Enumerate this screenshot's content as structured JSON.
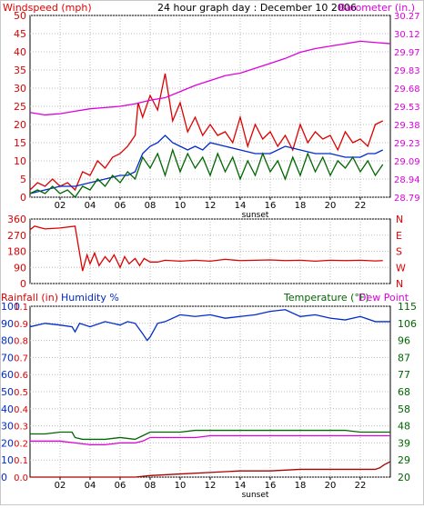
{
  "chart_data": [
    {
      "type": "line",
      "title": "24 hour graph day : December 10 2006",
      "ylabel_left": "Windspeed (mph)",
      "ylabel_right": "Barometer (in.)",
      "xlabel_marker": "sunset",
      "x_ticks": [
        "02",
        "04",
        "06",
        "08",
        "10",
        "12",
        "14",
        "16",
        "18",
        "20",
        "22"
      ],
      "x_range": [
        0,
        24
      ],
      "left_ticks": [
        "0",
        "5",
        "10",
        "15",
        "20",
        "25",
        "30",
        "35",
        "40",
        "45",
        "50"
      ],
      "left_range": [
        0,
        50
      ],
      "right_ticks": [
        "28.79",
        "28.94",
        "29.09",
        "29.23",
        "29.38",
        "29.53",
        "29.68",
        "29.83",
        "29.97",
        "30.12",
        "30.27"
      ],
      "right_range": [
        28.79,
        30.27
      ],
      "grid": true,
      "series": [
        {
          "name": "Windspeed (mph)",
          "axis": "left",
          "color": "#dd0000",
          "x": [
            0,
            0.5,
            1,
            1.5,
            2,
            2.5,
            3,
            3.5,
            4,
            4.5,
            5,
            5.5,
            6,
            6.5,
            7,
            7.2,
            7.5,
            8,
            8.5,
            9,
            9.5,
            10,
            10.5,
            11,
            11.5,
            12,
            12.5,
            13,
            13.5,
            14,
            14.5,
            15,
            15.5,
            16,
            16.5,
            17,
            17.5,
            18,
            18.5,
            19,
            19.5,
            20,
            20.5,
            21,
            21.5,
            22,
            22.5,
            23,
            23.5
          ],
          "y": [
            2,
            4,
            3,
            5,
            3,
            4,
            2,
            7,
            6,
            10,
            8,
            11,
            12,
            14,
            17,
            26,
            22,
            28,
            24,
            34,
            21,
            26,
            18,
            22,
            17,
            20,
            17,
            18,
            15,
            22,
            14,
            20,
            16,
            18,
            14,
            17,
            13,
            20,
            15,
            18,
            16,
            17,
            13,
            18,
            15,
            16,
            14,
            20,
            21
          ]
        },
        {
          "name": "",
          "axis": "left",
          "color": "#002bcc",
          "x": [
            0,
            1,
            2,
            3,
            4,
            5,
            6,
            6.5,
            7,
            7.5,
            8,
            8.5,
            9,
            9.5,
            10,
            10.5,
            11,
            11.5,
            12,
            13,
            14,
            15,
            16,
            17,
            18,
            19,
            20,
            21,
            22,
            22.5,
            23,
            23.5
          ],
          "y": [
            1,
            2,
            3,
            3,
            4,
            5,
            6,
            6,
            7,
            12,
            14,
            15,
            17,
            15,
            14,
            13,
            14,
            13,
            15,
            14,
            13,
            12,
            12,
            14,
            13,
            12,
            12,
            11,
            11,
            12,
            12,
            13
          ]
        },
        {
          "name": "",
          "axis": "left",
          "color": "#006600",
          "x": [
            0,
            0.5,
            1,
            1.5,
            2,
            2.5,
            3,
            3.5,
            4,
            4.5,
            5,
            5.5,
            6,
            6.5,
            7,
            7.5,
            8,
            8.5,
            9,
            9.5,
            10,
            10.5,
            11,
            11.5,
            12,
            12.5,
            13,
            13.5,
            14,
            14.5,
            15,
            15.5,
            16,
            16.5,
            17,
            17.5,
            18,
            18.5,
            19,
            19.5,
            20,
            20.5,
            21,
            21.5,
            22,
            22.5,
            23,
            23.5
          ],
          "y": [
            1,
            2,
            1,
            3,
            1,
            2,
            0,
            3,
            2,
            5,
            3,
            6,
            4,
            7,
            5,
            11,
            8,
            12,
            6,
            13,
            7,
            12,
            8,
            11,
            6,
            12,
            7,
            11,
            5,
            10,
            6,
            12,
            7,
            10,
            5,
            11,
            6,
            12,
            7,
            11,
            6,
            10,
            8,
            11,
            7,
            10,
            6,
            9
          ]
        },
        {
          "name": "Barometer (in.)",
          "axis": "right",
          "color": "#dd00dd",
          "x": [
            0,
            1,
            2,
            3,
            4,
            5,
            6,
            7,
            8,
            9,
            10,
            11,
            12,
            13,
            14,
            15,
            16,
            17,
            18,
            19,
            20,
            21,
            22,
            23,
            24
          ],
          "y": [
            29.48,
            29.46,
            29.47,
            29.49,
            29.51,
            29.52,
            29.53,
            29.55,
            29.58,
            29.6,
            29.65,
            29.7,
            29.74,
            29.78,
            29.8,
            29.84,
            29.88,
            29.92,
            29.97,
            30.0,
            30.02,
            30.04,
            30.06,
            30.05,
            30.04
          ]
        }
      ]
    },
    {
      "type": "line",
      "left_ticks": [
        "0",
        "90",
        "180",
        "270",
        "360"
      ],
      "left_range": [
        0,
        360
      ],
      "right_ticks": [
        "N",
        "W",
        "S",
        "E",
        "N"
      ],
      "series": [
        {
          "name": "",
          "color": "#dd0000",
          "x": [
            0,
            0.3,
            1,
            2,
            3,
            3.5,
            3.8,
            4,
            4.3,
            4.6,
            5,
            5.3,
            5.6,
            6,
            6.3,
            6.6,
            7,
            7.3,
            7.6,
            8,
            8.5,
            9,
            10,
            11,
            12,
            13,
            14,
            15,
            16,
            17,
            18,
            19,
            20,
            21,
            22,
            23,
            23.5
          ],
          "y": [
            300,
            320,
            305,
            310,
            320,
            70,
            160,
            110,
            170,
            100,
            150,
            120,
            160,
            90,
            150,
            110,
            140,
            100,
            140,
            120,
            120,
            130,
            125,
            130,
            125,
            135,
            128,
            130,
            132,
            128,
            130,
            125,
            130,
            128,
            130,
            126,
            128
          ]
        }
      ]
    },
    {
      "type": "line",
      "labels": [
        "Rainfall (in)",
        "Humidity %",
        "Temperature (°F)",
        "Dew Point"
      ],
      "left_ticks_humidity": [
        "0",
        "10",
        "20",
        "30",
        "40",
        "50",
        "60",
        "70",
        "80",
        "90",
        "100"
      ],
      "left_ticks_rain": [
        "0.0",
        "0.1",
        "0.2",
        "0.3",
        "0.4",
        "0.5",
        "0.6",
        "0.7",
        "0.8",
        "0.9",
        "1.1"
      ],
      "right_ticks": [
        "20",
        "29",
        "39",
        "48",
        "58",
        "68",
        "77",
        "87",
        "96",
        "106",
        "115"
      ],
      "humidity_range": [
        0,
        100
      ],
      "rain_range": [
        0,
        1.1
      ],
      "temp_range": [
        20,
        115
      ],
      "series": [
        {
          "name": "Humidity %",
          "axis": "humidity",
          "color": "#002bcc",
          "x": [
            0,
            1,
            2,
            2.8,
            3,
            3.3,
            4,
            5,
            6,
            6.5,
            7,
            7.5,
            7.8,
            8,
            8.5,
            9,
            10,
            11,
            12,
            13,
            14,
            15,
            16,
            17,
            18,
            19,
            20,
            21,
            22,
            23,
            24
          ],
          "y": [
            88,
            90,
            89,
            88,
            85,
            90,
            88,
            91,
            89,
            91,
            90,
            84,
            80,
            82,
            90,
            91,
            95,
            94,
            95,
            93,
            94,
            95,
            97,
            98,
            94,
            95,
            93,
            92,
            94,
            91,
            91
          ]
        },
        {
          "name": "Temperature (°F)",
          "axis": "temp",
          "color": "#006600",
          "x": [
            0,
            1,
            2,
            2.8,
            3,
            3.5,
            4,
            5,
            6,
            7,
            7.5,
            8,
            9,
            10,
            11,
            12,
            13,
            14,
            15,
            16,
            17,
            18,
            19,
            20,
            21,
            22,
            23,
            24
          ],
          "y": [
            44,
            44,
            45,
            45,
            42,
            41,
            41,
            41,
            42,
            41,
            43,
            45,
            45,
            45,
            46,
            46,
            46,
            46,
            46,
            46,
            46,
            46,
            46,
            46,
            46,
            45,
            45,
            45
          ]
        },
        {
          "name": "Dew Point",
          "axis": "temp",
          "color": "#dd00dd",
          "x": [
            0,
            1,
            2,
            3,
            4,
            5,
            6,
            7,
            7.5,
            8,
            9,
            10,
            11,
            12,
            13,
            14,
            15,
            16,
            17,
            18,
            19,
            20,
            21,
            22,
            23,
            24
          ],
          "y": [
            40,
            40,
            40,
            39,
            38,
            38,
            39,
            39,
            40,
            42,
            42,
            42,
            42,
            43,
            43,
            43,
            43,
            43,
            43,
            43,
            43,
            43,
            43,
            43,
            43,
            43
          ]
        },
        {
          "name": "Rainfall (in)",
          "axis": "rain",
          "color": "#aa0000",
          "x": [
            0,
            7,
            8,
            10,
            12,
            14,
            16,
            18,
            20,
            22,
            23,
            23.3,
            23.6,
            24
          ],
          "y": [
            0,
            0,
            0.01,
            0.02,
            0.03,
            0.04,
            0.04,
            0.05,
            0.05,
            0.05,
            0.05,
            0.06,
            0.08,
            0.1
          ]
        }
      ]
    }
  ],
  "colors": {
    "windspeed": "#dd0000",
    "barometer": "#dd00dd",
    "humidity": "#002bcc",
    "temperature": "#006600",
    "grid": "#bbbbbb"
  }
}
